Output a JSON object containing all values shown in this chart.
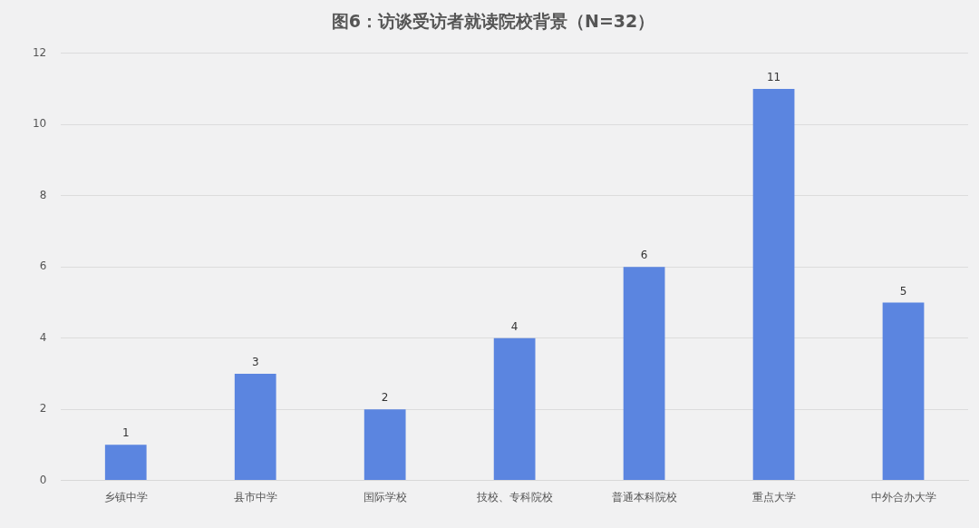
{
  "chart_data": {
    "type": "bar",
    "title": "图6：访谈受访者就读院校背景（N=32）",
    "categories": [
      "乡镇中学",
      "县市中学",
      "国际学校",
      "技校、专科院校",
      "普通本科院校",
      "重点大学",
      "中外合办大学"
    ],
    "values": [
      1,
      3,
      2,
      4,
      6,
      11,
      5
    ],
    "color": "#5b85e0",
    "ylim": [
      0,
      12
    ],
    "yticks": [
      0,
      2,
      4,
      6,
      8,
      10,
      12
    ],
    "grid": "y",
    "data_labels": true,
    "legend": false
  }
}
